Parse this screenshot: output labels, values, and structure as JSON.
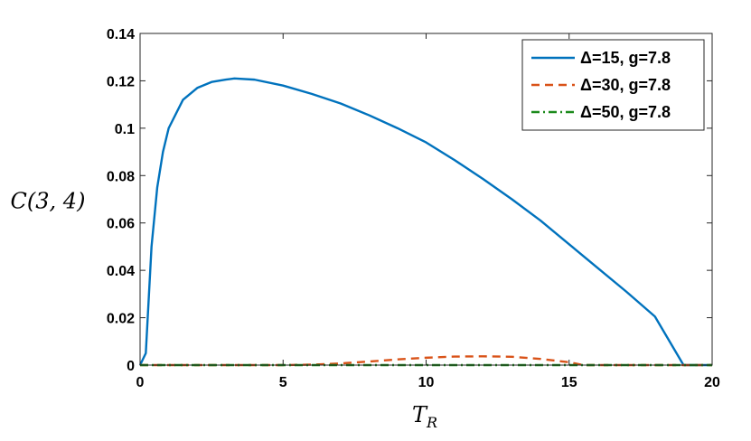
{
  "chart_data": {
    "type": "line",
    "title": "",
    "xlabel_main": "T",
    "xlabel_sub": "R",
    "ylabel": "C(3, 4)",
    "xlim": [
      0,
      20
    ],
    "ylim": [
      0,
      0.14
    ],
    "xticks": [
      0,
      5,
      10,
      15,
      20
    ],
    "xtick_labels": [
      "0",
      "5",
      "10",
      "15",
      "20"
    ],
    "yticks": [
      0,
      0.02,
      0.04,
      0.06,
      0.08,
      0.1,
      0.12,
      0.14
    ],
    "ytick_labels": [
      "0",
      "0.02",
      "0.04",
      "0.06",
      "0.08",
      "0.1",
      "0.12",
      "0.14"
    ],
    "grid": false,
    "legend_position": "top-right",
    "series": [
      {
        "name": "Δ=15, g=7.8",
        "color": "#0072BD",
        "style": "solid",
        "x": [
          0,
          0.2,
          0.4,
          0.6,
          0.8,
          1.0,
          1.5,
          2.0,
          2.5,
          3.0,
          3.3,
          4.0,
          5.0,
          6.0,
          7.0,
          8.0,
          9.0,
          10.0,
          11.0,
          12.0,
          13.0,
          14.0,
          15.0,
          16.0,
          17.0,
          18.0,
          19.0,
          20.0
        ],
        "y": [
          0,
          0.005,
          0.05,
          0.075,
          0.09,
          0.1,
          0.112,
          0.117,
          0.1195,
          0.1205,
          0.121,
          0.1205,
          0.118,
          0.1145,
          0.1105,
          0.1055,
          0.1,
          0.094,
          0.0865,
          0.0785,
          0.07,
          0.061,
          0.051,
          0.041,
          0.031,
          0.0205,
          0.0,
          0.0
        ]
      },
      {
        "name": "Δ=30, g=7.8",
        "color": "#D95319",
        "style": "dashed",
        "x": [
          0,
          5.0,
          6.0,
          7.0,
          8.0,
          9.0,
          10.0,
          11.0,
          12.0,
          13.0,
          14.0,
          15.0,
          15.5,
          20.0
        ],
        "y": [
          0,
          0,
          0.0002,
          0.0007,
          0.0015,
          0.0024,
          0.0031,
          0.0036,
          0.0037,
          0.0035,
          0.0026,
          0.0012,
          0,
          0
        ]
      },
      {
        "name": "Δ=50, g=7.8",
        "color": "#1B8A1B",
        "style": "dashdot",
        "x": [
          0,
          5,
          10,
          15,
          20
        ],
        "y": [
          0,
          0,
          0,
          0,
          0
        ]
      }
    ]
  }
}
